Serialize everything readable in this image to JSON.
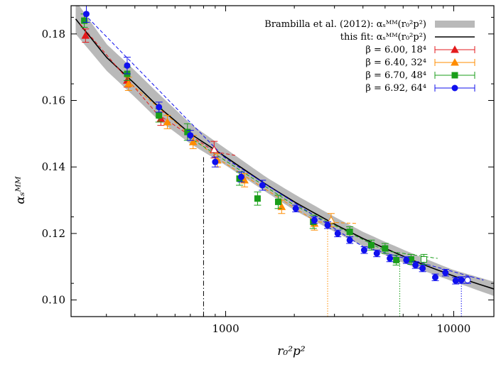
{
  "chart_data": {
    "type": "scatter",
    "xlabel": "r₀²p²",
    "ylabel": "αₛᴹᴹ",
    "x_scale": "log",
    "xlim": [
      210,
      15000
    ],
    "ylim": [
      0.095,
      0.1885
    ],
    "x_ticks": [
      1000,
      10000
    ],
    "x_tick_labels": [
      "1000",
      "10000"
    ],
    "y_ticks": [
      0.1,
      0.12,
      0.14,
      0.16,
      0.18
    ],
    "y_tick_labels": [
      "0.10",
      "0.12",
      "0.14",
      "0.16",
      "0.18"
    ],
    "legend_position": "top-right",
    "band": {
      "name": "Brambilla et al. (2012): αₛᴹᴹ(r₀²p²)",
      "color": "#b9b9b9",
      "x": [
        220,
        300,
        400,
        500,
        700,
        1000,
        1500,
        2000,
        3000,
        4000,
        5000,
        7000,
        10000,
        15000
      ],
      "lo": [
        0.18,
        0.169,
        0.161,
        0.1545,
        0.147,
        0.1405,
        0.1325,
        0.127,
        0.1205,
        0.1162,
        0.1135,
        0.1093,
        0.1055,
        0.1012
      ],
      "hi": [
        0.19,
        0.177,
        0.169,
        0.1625,
        0.153,
        0.1455,
        0.137,
        0.1318,
        0.125,
        0.1205,
        0.1175,
        0.1132,
        0.109,
        0.1055
      ]
    },
    "fit": {
      "name": "this fit: αₛᴹᴹ(r₀²p²)",
      "color": "#000000",
      "x": [
        220,
        300,
        400,
        500,
        700,
        1000,
        1500,
        2000,
        3000,
        4000,
        5000,
        7000,
        10000,
        15000
      ],
      "y": [
        0.1845,
        0.173,
        0.165,
        0.1585,
        0.15,
        0.143,
        0.1348,
        0.1295,
        0.1228,
        0.1185,
        0.1155,
        0.1112,
        0.1072,
        0.1033
      ]
    },
    "series": [
      {
        "name": "β = 6.00, 18⁴",
        "color": "#e31a1c",
        "marker": "triangle",
        "x": [
          243,
          370,
          520,
          890
        ],
        "y": [
          0.1795,
          0.166,
          0.1545,
          0.1452
        ],
        "err": [
          0.002,
          0.002,
          0.002,
          0.0025
        ],
        "open_points": [
          {
            "x": 890,
            "y": 0.1452,
            "err": 0.0025
          }
        ],
        "dash": {
          "x": [
            230,
            500,
            900,
            1100
          ],
          "y": [
            0.183,
            0.156,
            0.1445,
            0.1435
          ]
        }
      },
      {
        "name": "β = 6.40, 32⁴",
        "color": "#ff8c00",
        "marker": "triangle",
        "x": [
          375,
          555,
          720,
          920,
          1210,
          1760,
          2450,
          2900
        ],
        "y": [
          0.165,
          0.1535,
          0.1475,
          0.142,
          0.136,
          0.128,
          0.123,
          0.124
        ],
        "err": [
          0.002,
          0.002,
          0.002,
          0.002,
          0.002,
          0.002,
          0.002,
          0.002
        ],
        "open_points": [
          {
            "x": 2900,
            "y": 0.124,
            "err": 0.002
          }
        ],
        "dash": {
          "x": [
            370,
            900,
            2500,
            3800
          ],
          "y": [
            0.166,
            0.143,
            0.1235,
            0.123
          ]
        }
      },
      {
        "name": "β = 6.70, 48⁴",
        "color": "#1a9e1a",
        "marker": "square",
        "x": [
          240,
          370,
          510,
          680,
          1150,
          1380,
          1700,
          2420,
          3500,
          4350,
          5000,
          5600,
          6500,
          7400
        ],
        "y": [
          0.184,
          0.168,
          0.1555,
          0.1505,
          0.1365,
          0.1305,
          0.1295,
          0.1235,
          0.1205,
          0.1165,
          0.1155,
          0.112,
          0.1122,
          0.1122
        ],
        "err": [
          0.002,
          0.002,
          0.002,
          0.0025,
          0.002,
          0.002,
          0.002,
          0.002,
          0.0015,
          0.0015,
          0.0015,
          0.0015,
          0.0015,
          0.0015
        ],
        "open_points": [
          {
            "x": 7400,
            "y": 0.1122,
            "err": 0.0015
          }
        ],
        "dash": {
          "x": [
            690,
            2000,
            5000,
            8500
          ],
          "y": [
            0.149,
            0.1285,
            0.1148,
            0.1125
          ]
        }
      },
      {
        "name": "β = 6.92, 64⁴",
        "color": "#1010ee",
        "marker": "circle",
        "x": [
          245,
          370,
          510,
          700,
          900,
          1170,
          1450,
          2030,
          2450,
          2800,
          3100,
          3500,
          4050,
          4600,
          5250,
          6200,
          6800,
          7300,
          8300,
          9200,
          10200,
          10800
        ],
        "y": [
          0.186,
          0.1705,
          0.158,
          0.1495,
          0.1415,
          0.137,
          0.1345,
          0.1275,
          0.124,
          0.1225,
          0.12,
          0.118,
          0.115,
          0.114,
          0.1125,
          0.112,
          0.1105,
          0.1095,
          0.1068,
          0.1082,
          0.1058,
          0.106
        ],
        "err": [
          0.0025,
          0.0025,
          0.0015,
          0.0015,
          0.0015,
          0.0015,
          0.0015,
          0.001,
          0.001,
          0.001,
          0.001,
          0.001,
          0.001,
          0.001,
          0.001,
          0.001,
          0.001,
          0.001,
          0.001,
          0.001,
          0.001,
          0.001
        ],
        "open_points": [
          {
            "x": 11500,
            "y": 0.106,
            "err": 0.001
          }
        ],
        "dash": {
          "x": [
            240,
            1000,
            4000,
            13500
          ],
          "y": [
            0.186,
            0.1425,
            0.116,
            0.106
          ]
        }
      }
    ],
    "cut_lines": [
      {
        "x": 800,
        "y_top": 0.143,
        "style": "dashdot",
        "color": "#000000"
      },
      {
        "x": 2800,
        "y_top": 0.1225,
        "style": "dotted",
        "color": "#ff8c00"
      },
      {
        "x": 5800,
        "y_top": 0.112,
        "style": "dotted",
        "color": "#1a9e1a"
      },
      {
        "x": 10800,
        "y_top": 0.105,
        "style": "dotted",
        "color": "#1010ee"
      }
    ]
  }
}
